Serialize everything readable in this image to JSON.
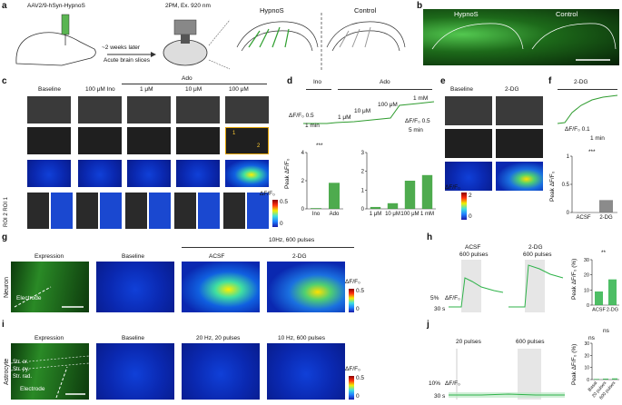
{
  "panels": {
    "a": {
      "letter": "a",
      "virus": "AAV2/9-hSyn-HypnoS",
      "delay": "~2 weeks later",
      "slices": "Acute brain slices",
      "imaging": "2PM, Ex. 920 nm",
      "left_label": "HypnoS",
      "right_label": "Control"
    },
    "b": {
      "letter": "b",
      "left_label": "HypnoS",
      "right_label": "Control"
    },
    "c": {
      "letter": "c",
      "cols": [
        "Baseline",
        "100 μM Ino",
        "1 μM",
        "10 μM",
        "100 μM"
      ],
      "group": "Ado",
      "roi": "ROI 2 ROI 1",
      "cbar_title": "ΔF/F₀",
      "cbar_max": "0.5",
      "cbar_min": "0",
      "roi_tag1": "1",
      "roi_tag2": "2"
    },
    "d": {
      "letter": "d",
      "ino": "Ino",
      "ado": "Ado",
      "conc": [
        "1 μM",
        "10 μM",
        "100 μM",
        "1 mM"
      ],
      "scale_y": "ΔF/F₀",
      "scale_y_val": "0.5",
      "scale_x": "1 min",
      "scale2_y": "ΔF/F₀",
      "scale2_y_val": "0.5",
      "scale2_x": "5 min",
      "ylabel": "Peak ΔF/F₀",
      "sig": "***"
    },
    "e": {
      "letter": "e",
      "cols": [
        "Baseline",
        "2-DG"
      ],
      "cbar_title": "ΔF/F₀",
      "cbar_max": "2",
      "cbar_min": "0"
    },
    "f": {
      "letter": "f",
      "title": "2-DG",
      "scale_y": "ΔF/F₀",
      "scale_y_val": "0.1",
      "scale_x": "1 min",
      "ylabel": "Peak ΔF/F₀",
      "sig": "***"
    },
    "g": {
      "letter": "g",
      "row": "Neuron",
      "cols": [
        "Expression",
        "Baseline",
        "ACSF",
        "2-DG"
      ],
      "stim": "10Hz, 600 pulses",
      "electrode": "Electrode",
      "cbar_title": "ΔF/F₀",
      "cbar_max": "0.5",
      "cbar_min": "0"
    },
    "h": {
      "letter": "h",
      "l1": "ACSF",
      "l1b": "600 pulses",
      "l2": "2-DG",
      "l2b": "600 pulses",
      "scale_y": "5%",
      "scale_y2": "ΔF/F₀",
      "scale_x": "30 s",
      "ylabel": "Peak ΔF/F₀ (%)",
      "sig": "**"
    },
    "i": {
      "letter": "i",
      "row": "Astrocyte",
      "cols": [
        "Expression",
        "Baseline",
        "20 Hz, 20 pulses",
        "10 Hz, 600 pulses"
      ],
      "layers": [
        "Str. or.",
        "Str. py.",
        "Str. rad."
      ],
      "electrode": "Electrode",
      "cbar_title": "ΔF/F₀",
      "cbar_max": "0.5",
      "cbar_min": "0"
    },
    "j": {
      "letter": "j",
      "l1": "20 pulses",
      "l2": "600 pulses",
      "scale_y": "10%",
      "scale_y2": "ΔF/F₀",
      "scale_x": "30 s",
      "ylabel": "Peak ΔF/F₀ (%)",
      "sig1": "ns",
      "sig2": "ns"
    }
  },
  "chart_data": [
    {
      "type": "bar",
      "panel": "d-left",
      "categories": [
        "Ino",
        "Ado"
      ],
      "values": [
        0.05,
        1.85
      ],
      "ylim": [
        0,
        4
      ],
      "yticks": [
        "0",
        "2",
        "4"
      ],
      "color": "#2f9c2f"
    },
    {
      "type": "bar",
      "panel": "d-right",
      "categories": [
        "1 μM",
        "10 μM",
        "100 μM",
        "1 mM"
      ],
      "values": [
        0.1,
        0.3,
        1.5,
        1.8
      ],
      "ylim": [
        0,
        3
      ],
      "yticks": [
        "0",
        "1",
        "2",
        "3"
      ],
      "color": "#2f9c2f"
    },
    {
      "type": "bar",
      "panel": "f",
      "categories": [
        "ACSF",
        "2-DG"
      ],
      "values": [
        0.0,
        0.22
      ],
      "ylim": [
        0,
        1
      ],
      "yticks": [
        "0",
        "0.5",
        "1"
      ],
      "color": "#777777"
    },
    {
      "type": "bar",
      "panel": "h",
      "categories": [
        "ACSF",
        "2-DG"
      ],
      "values": [
        9,
        17
      ],
      "ylim": [
        0,
        30
      ],
      "yticks": [
        "0",
        "10",
        "20",
        "30"
      ],
      "color": "#2fb34a"
    },
    {
      "type": "bar",
      "panel": "j",
      "categories": [
        "Basal",
        "20 pulses",
        "600 pulses"
      ],
      "values": [
        0.5,
        0.8,
        1.0
      ],
      "ylim": [
        0,
        30
      ],
      "yticks": [
        "0",
        "10",
        "20",
        "30"
      ],
      "color": "#2fb34a"
    }
  ]
}
